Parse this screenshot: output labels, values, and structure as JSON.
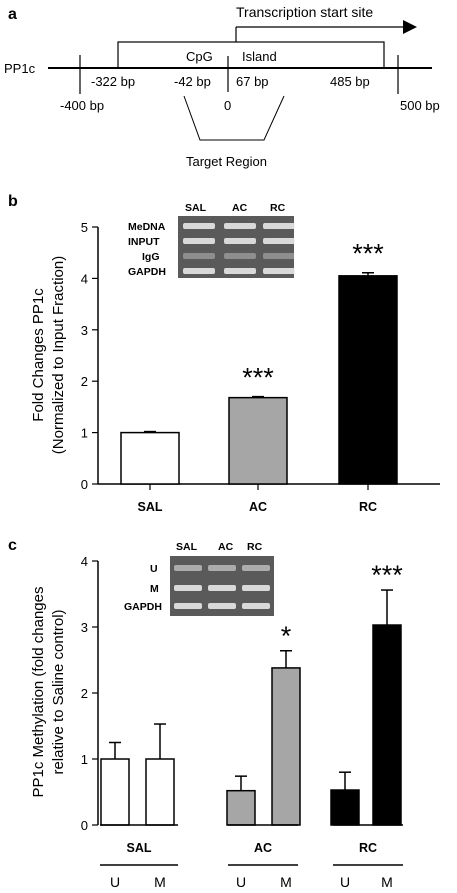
{
  "panels": {
    "a": {
      "letter": "a",
      "gene": "PP1c",
      "tss_label": "Transcription start site",
      "cpg_label": "CpG",
      "island_label": "Island",
      "positions": [
        "-322 bp",
        "-42 bp",
        "67 bp",
        "485 bp"
      ],
      "ends": [
        "-400 bp",
        "0",
        "500 bp"
      ],
      "target_label": "Target Region"
    },
    "b": {
      "letter": "b",
      "gel_lanes": [
        "SAL",
        "AC",
        "RC"
      ],
      "gel_rows": [
        "MeDNA",
        "INPUT",
        "IgG",
        "GAPDH"
      ]
    },
    "c": {
      "letter": "c",
      "gel_lanes": [
        "SAL",
        "AC",
        "RC"
      ],
      "gel_rows": [
        "U",
        "M",
        "GAPDH"
      ]
    }
  },
  "chart_data": [
    {
      "type": "bar",
      "ylabel": "Fold Changes PP1c",
      "ylabel2": "(Normalized to Input Fraction)",
      "ylim": [
        0,
        5
      ],
      "yticks": [
        "0",
        "1",
        "2",
        "3",
        "4",
        "5"
      ],
      "categories": [
        "SAL",
        "AC",
        "RC"
      ],
      "values": [
        1.0,
        1.68,
        4.05
      ],
      "errors": [
        0.02,
        0.02,
        0.06
      ],
      "colors": [
        "#ffffff",
        "#a6a6a6",
        "#000000"
      ],
      "significance": [
        "",
        "***",
        "***"
      ]
    },
    {
      "type": "bar",
      "ylabel": "PP1c Methylation (fold changes",
      "ylabel2": "relative to Saline control)",
      "ylim": [
        0,
        4
      ],
      "yticks": [
        "0",
        "1",
        "2",
        "3",
        "4"
      ],
      "groups": [
        "SAL",
        "AC",
        "RC"
      ],
      "subcategories": [
        "U",
        "M"
      ],
      "values": [
        [
          1.0,
          1.0
        ],
        [
          0.52,
          2.38
        ],
        [
          0.53,
          3.03
        ]
      ],
      "errors": [
        [
          0.25,
          0.53
        ],
        [
          0.22,
          0.26
        ],
        [
          0.27,
          0.53
        ]
      ],
      "colors": [
        "#ffffff",
        "#a6a6a6",
        "#000000"
      ],
      "significance": [
        [
          "",
          ""
        ],
        [
          "",
          "*"
        ],
        [
          "",
          "***"
        ]
      ]
    }
  ]
}
